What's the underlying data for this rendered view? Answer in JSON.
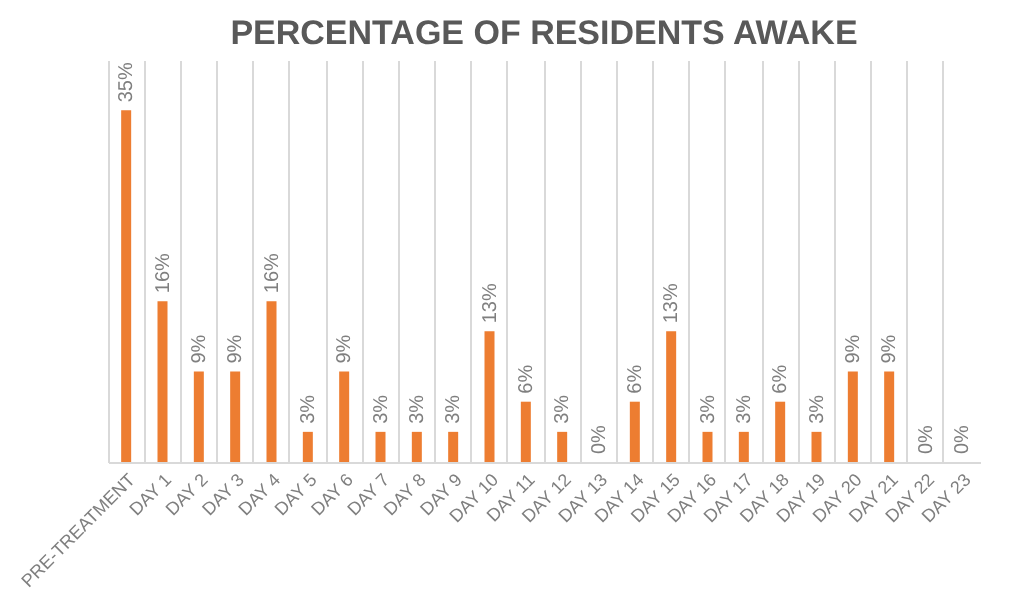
{
  "chart_data": {
    "type": "bar",
    "title": "PERCENTAGE OF RESIDENTS AWAKE",
    "categories": [
      "PRE-TREATMENT",
      "DAY 1",
      "DAY 2",
      "DAY 3",
      "DAY 4",
      "DAY 5",
      "DAY 6",
      "DAY 7",
      "DAY 8",
      "DAY 9",
      "DAY 10",
      "DAY 11",
      "DAY 12",
      "DAY 13",
      "DAY 14",
      "DAY 15",
      "DAY 16",
      "DAY 17",
      "DAY 18",
      "DAY 19",
      "DAY 20",
      "DAY 21",
      "DAY 22",
      "DAY 23"
    ],
    "values": [
      35,
      16,
      9,
      9,
      16,
      3,
      9,
      3,
      3,
      3,
      13,
      6,
      3,
      0,
      6,
      13,
      3,
      3,
      6,
      3,
      9,
      9,
      0,
      0
    ],
    "value_labels": [
      "35%",
      "16%",
      "9%",
      "9%",
      "16%",
      "3%",
      "9%",
      "3%",
      "3%",
      "3%",
      "13%",
      "6%",
      "3%",
      "0%",
      "6%",
      "13%",
      "3%",
      "3%",
      "6%",
      "3%",
      "9%",
      "9%",
      "0%",
      "0%"
    ],
    "color": "#ed7d31",
    "ylim": [
      0,
      40
    ],
    "grid": "x",
    "tick_labels": "x"
  }
}
